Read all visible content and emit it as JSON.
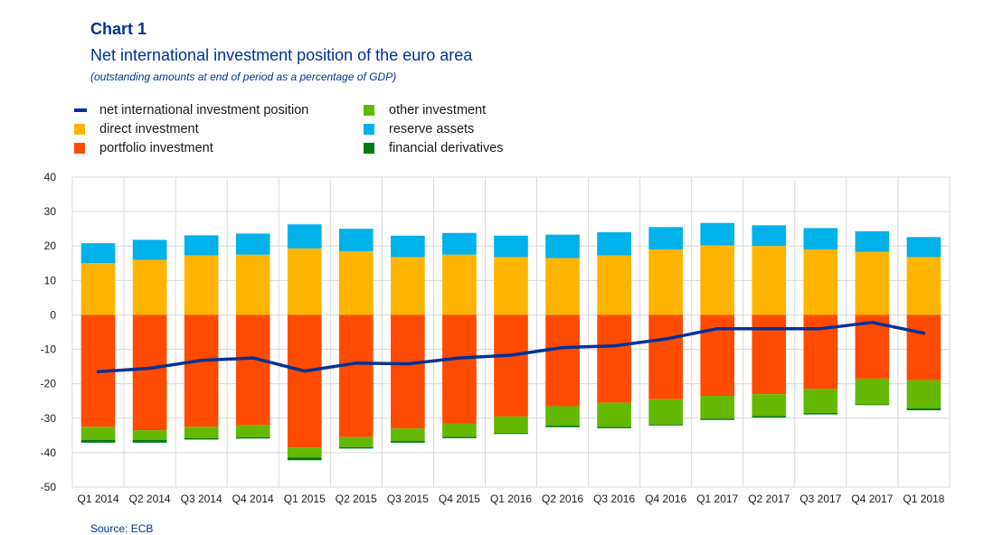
{
  "header": {
    "chart_label": "Chart 1",
    "title": "Net international investment position of the euro area",
    "subtitle": "(outstanding amounts at end of period as a percentage of GDP)"
  },
  "source": "Source: ECB",
  "colors": {
    "net": "#003299",
    "direct": "#FFB400",
    "portfolio": "#FF4B00",
    "other": "#65B800",
    "reserve": "#00B1EA",
    "derivatives": "#007816",
    "grid": "#d9d9d9"
  },
  "chart_data": {
    "type": "bar",
    "stacked": true,
    "categories": [
      "Q1 2014",
      "Q2 2014",
      "Q3 2014",
      "Q4 2014",
      "Q1 2015",
      "Q2 2015",
      "Q3 2015",
      "Q4 2015",
      "Q1 2016",
      "Q2 2016",
      "Q3 2016",
      "Q4 2016",
      "Q1 2017",
      "Q2 2017",
      "Q3 2017",
      "Q4 2017",
      "Q1 2018"
    ],
    "ylim": [
      -50,
      40
    ],
    "yticks": [
      40,
      30,
      20,
      10,
      0,
      -10,
      -20,
      -30,
      -40,
      -50
    ],
    "grid": true,
    "legend": "top",
    "series": [
      {
        "name": "net international investment position",
        "type": "line",
        "key": "net",
        "values": [
          -16.5,
          -15.5,
          -13.2,
          -12.5,
          -16.3,
          -14.0,
          -14.2,
          -12.5,
          -11.7,
          -9.5,
          -9.0,
          -7.0,
          -4.0,
          -4.0,
          -4.0,
          -2.2,
          -5.3
        ]
      },
      {
        "name": "direct investment",
        "type": "bar",
        "key": "direct",
        "values": [
          15.0,
          16.0,
          17.3,
          17.5,
          19.3,
          18.5,
          16.8,
          17.5,
          16.8,
          16.5,
          17.3,
          19.0,
          20.2,
          20.0,
          19.0,
          18.3,
          16.8
        ]
      },
      {
        "name": "portfolio investment",
        "type": "bar",
        "key": "portfolio",
        "values": [
          -32.5,
          -33.5,
          -32.5,
          -32.0,
          -38.5,
          -35.5,
          -33.0,
          -31.5,
          -29.5,
          -26.5,
          -25.5,
          -24.5,
          -23.5,
          -23.0,
          -21.5,
          -18.5,
          -19.0
        ]
      },
      {
        "name": "other investment",
        "type": "bar",
        "key": "other",
        "values": [
          -3.8,
          -2.8,
          -3.3,
          -3.5,
          -2.9,
          -2.9,
          -3.6,
          -3.9,
          -4.8,
          -5.6,
          -7.0,
          -7.3,
          -6.6,
          -6.4,
          -7.0,
          -7.5,
          -8.1
        ]
      },
      {
        "name": "reserve assets",
        "type": "bar",
        "key": "reserve",
        "values": [
          5.8,
          5.8,
          5.8,
          6.1,
          7.0,
          6.5,
          6.2,
          6.3,
          6.2,
          6.8,
          6.7,
          6.5,
          6.5,
          6.0,
          6.2,
          6.0,
          5.8
        ]
      },
      {
        "name": "financial derivatives",
        "type": "bar",
        "key": "derivatives",
        "values": [
          -0.8,
          -0.8,
          -0.4,
          -0.4,
          -0.8,
          -0.4,
          -0.5,
          -0.4,
          -0.3,
          -0.5,
          -0.4,
          -0.3,
          -0.4,
          -0.4,
          -0.4,
          -0.2,
          -0.6
        ]
      }
    ]
  }
}
